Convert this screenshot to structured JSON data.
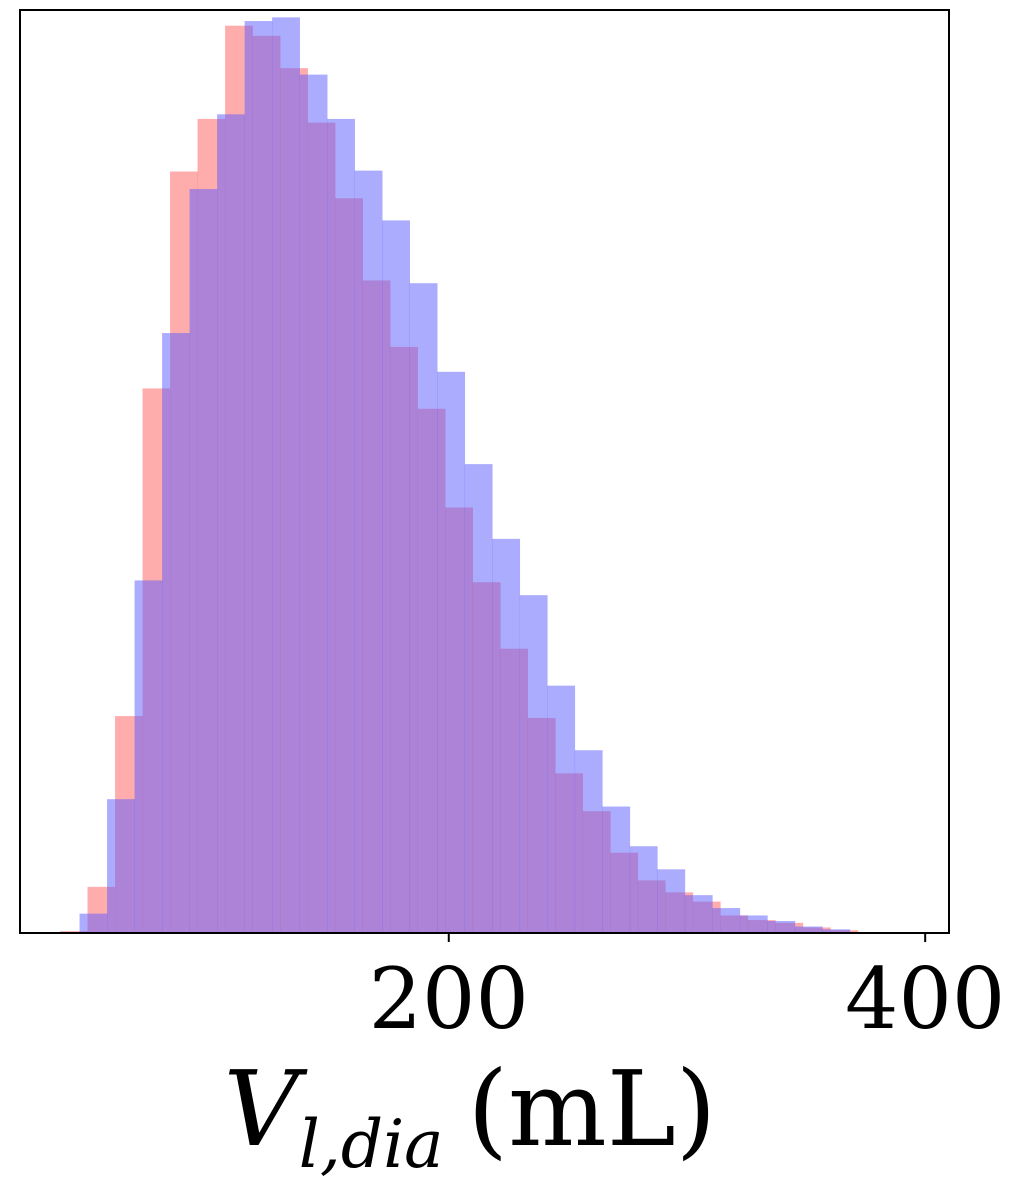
{
  "chart_data": {
    "type": "histogram",
    "title": "",
    "xlabel_parts": {
      "symbol": "V",
      "subscript": "l,dia",
      "unit": "(mL)"
    },
    "ylabel": "",
    "xlim": [
      20,
      410
    ],
    "ylim": [
      0,
      1.0
    ],
    "xticks": [
      200,
      400
    ],
    "xtick_labels": [
      "200",
      "400"
    ],
    "yticks": [],
    "grid": false,
    "series": [
      {
        "color": "#ff5a5a",
        "opacity": 0.5,
        "bin_width": 11.55,
        "bin_start": 36.8,
        "counts": [
          0.002,
          0.05,
          0.235,
          0.59,
          0.825,
          0.882,
          0.983,
          0.972,
          0.937,
          0.878,
          0.796,
          0.707,
          0.635,
          0.568,
          0.461,
          0.38,
          0.308,
          0.233,
          0.173,
          0.132,
          0.087,
          0.057,
          0.044,
          0.034,
          0.019,
          0.014,
          0.011,
          0.006,
          0.003,
          0.001
        ]
      },
      {
        "color": "#5a5aff",
        "opacity": 0.5,
        "bin_width": 11.55,
        "bin_start": 45.0,
        "counts": [
          0.021,
          0.145,
          0.382,
          0.65,
          0.806,
          0.887,
          0.988,
          0.992,
          0.93,
          0.882,
          0.826,
          0.772,
          0.704,
          0.608,
          0.508,
          0.427,
          0.366,
          0.268,
          0.198,
          0.137,
          0.094,
          0.069,
          0.041,
          0.027,
          0.019,
          0.013,
          0.007,
          0.004,
          0.001
        ]
      }
    ]
  }
}
